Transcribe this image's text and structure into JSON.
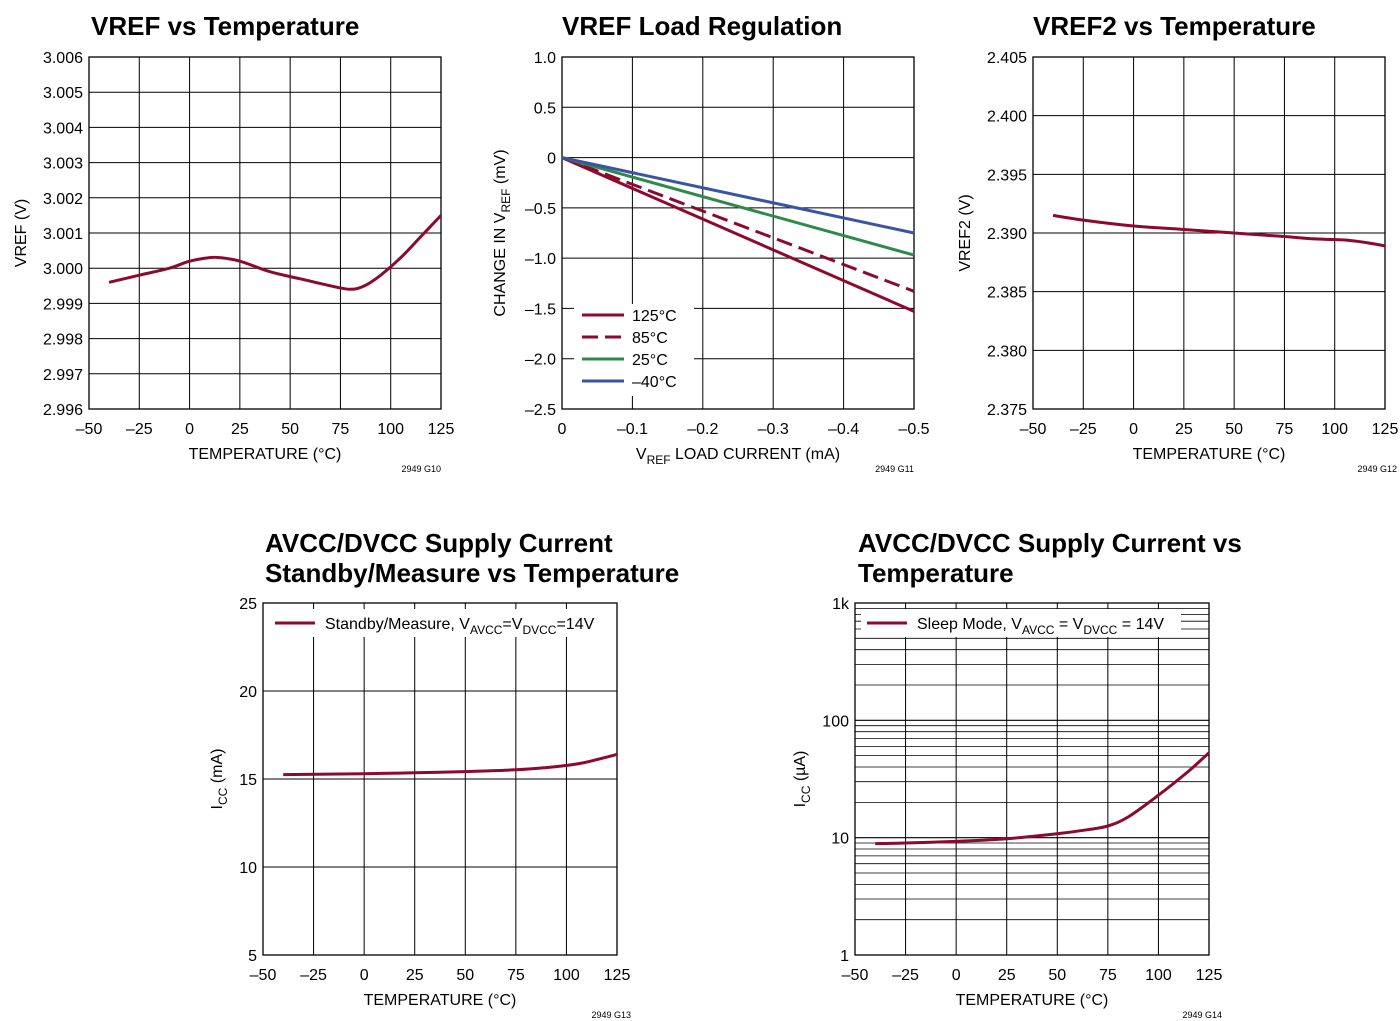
{
  "chart_data": [
    {
      "type": "line",
      "title": "VREF vs Temperature",
      "xlabel": "TEMPERATURE (°C)",
      "ylabel": "VREF (V)",
      "figure_id": "2949 G10",
      "xlim": [
        -50,
        125
      ],
      "ylim": [
        2.996,
        3.006
      ],
      "xticks": [
        "–50",
        "–25",
        "0",
        "25",
        "50",
        "75",
        "100",
        "125"
      ],
      "yticks": [
        "2.996",
        "2.997",
        "2.998",
        "2.999",
        "3.000",
        "3.001",
        "3.002",
        "3.003",
        "3.004",
        "3.005",
        "3.006"
      ],
      "grid": true,
      "series": [
        {
          "color": "#8b0a2e",
          "dash": "solid",
          "x": [
            -40,
            -25,
            -10,
            0,
            10,
            15,
            25,
            40,
            55,
            70,
            80,
            87,
            95,
            105,
            115,
            125
          ],
          "y": [
            2.9996,
            2.9998,
            3.0,
            3.0002,
            3.0003,
            3.0003,
            3.0002,
            2.9999,
            2.9997,
            2.9995,
            2.9994,
            2.9995,
            2.9998,
            3.0003,
            3.0009,
            3.0015
          ]
        }
      ]
    },
    {
      "type": "line",
      "title": "VREF Load Regulation",
      "xlabel_main": "V",
      "xlabel_sub": "REF",
      "xlabel_rest": " LOAD CURRENT (mA)",
      "ylabel_main": "CHANGE IN V",
      "ylabel_sub": "REF",
      "ylabel_rest": " (mV)",
      "figure_id": "2949 G11",
      "xlim": [
        0,
        -0.5
      ],
      "ylim": [
        -2.5,
        1.0
      ],
      "xticks": [
        "0",
        "–0.1",
        "–0.2",
        "–0.3",
        "–0.4",
        "–0.5"
      ],
      "yticks": [
        "–2.5",
        "–2.0",
        "–1.5",
        "–1.0",
        "–0.5",
        "0",
        "0.5",
        "1.0"
      ],
      "grid": true,
      "legend_position": "bottom-left",
      "series": [
        {
          "name": "125°C",
          "color": "#8b0a2e",
          "dash": "solid",
          "x": [
            0,
            -0.5
          ],
          "y": [
            0,
            -1.53
          ]
        },
        {
          "name": "85°C",
          "color": "#8b0a2e",
          "dash": "dashed",
          "x": [
            0,
            -0.5
          ],
          "y": [
            0,
            -1.33
          ]
        },
        {
          "name": "25°C",
          "color": "#2e8a4a",
          "dash": "solid",
          "x": [
            0,
            -0.5
          ],
          "y": [
            0,
            -0.97
          ]
        },
        {
          "name": "–40°C",
          "color": "#3a54a4",
          "dash": "solid",
          "x": [
            0,
            -0.5
          ],
          "y": [
            0,
            -0.75
          ]
        }
      ]
    },
    {
      "type": "line",
      "title": "VREF2 vs Temperature",
      "xlabel": "TEMPERATURE (°C)",
      "ylabel": "VREF2 (V)",
      "figure_id": "2949 G12",
      "xlim": [
        -50,
        125
      ],
      "ylim": [
        2.375,
        2.405
      ],
      "xticks": [
        "–50",
        "–25",
        "0",
        "25",
        "50",
        "75",
        "100",
        "125"
      ],
      "yticks": [
        "2.375",
        "2.380",
        "2.385",
        "2.390",
        "2.395",
        "2.400",
        "2.405"
      ],
      "grid": true,
      "series": [
        {
          "color": "#8b0a2e",
          "dash": "solid",
          "x": [
            -40,
            -25,
            0,
            25,
            50,
            75,
            90,
            105,
            115,
            125
          ],
          "y": [
            2.3915,
            2.3911,
            2.3906,
            2.3903,
            2.39,
            2.3897,
            2.3895,
            2.3894,
            2.3892,
            2.3889
          ]
        }
      ]
    },
    {
      "type": "line",
      "title": "AVCC/DVCC Supply Current",
      "title_line2": "Standby/Measure vs Temperature",
      "xlabel": "TEMPERATURE (°C)",
      "ylabel_main": "I",
      "ylabel_sub": "CC",
      "ylabel_rest": " (mA)",
      "figure_id": "2949 G13",
      "xlim": [
        -50,
        125
      ],
      "ylim": [
        5,
        25
      ],
      "xticks": [
        "–50",
        "–25",
        "0",
        "25",
        "50",
        "75",
        "100",
        "125"
      ],
      "yticks": [
        "5",
        "10",
        "15",
        "20",
        "25"
      ],
      "grid": true,
      "legend_position": "top",
      "legend_parts": [
        "Standby/Measure, V",
        "AVCC",
        "=V",
        "DVCC",
        "=14V"
      ],
      "series": [
        {
          "color": "#8b0a2e",
          "dash": "solid",
          "x": [
            -40,
            0,
            25,
            50,
            75,
            90,
            105,
            115,
            125
          ],
          "y": [
            15.25,
            15.3,
            15.35,
            15.42,
            15.52,
            15.65,
            15.85,
            16.1,
            16.4
          ]
        }
      ]
    },
    {
      "type": "line",
      "title": "AVCC/DVCC Supply Current vs",
      "title_line2": "Temperature",
      "xlabel": "TEMPERATURE (°C)",
      "ylabel_main": "I",
      "ylabel_sub": "CC",
      "ylabel_rest": " (µA)",
      "figure_id": "2949 G14",
      "xlim": [
        -50,
        125
      ],
      "ylim": [
        1,
        1000
      ],
      "yscale": "log",
      "xticks": [
        "–50",
        "–25",
        "0",
        "25",
        "50",
        "75",
        "100",
        "125"
      ],
      "yticks": [
        "1",
        "10",
        "100",
        "1k"
      ],
      "grid": true,
      "legend_position": "top",
      "legend_parts": [
        "Sleep Mode,  V",
        "AVCC",
        " = V",
        "DVCC",
        " = 14V"
      ],
      "series": [
        {
          "color": "#8b0a2e",
          "dash": "solid",
          "x": [
            -40,
            -25,
            0,
            25,
            50,
            65,
            75,
            85,
            100,
            115,
            125
          ],
          "y": [
            8.9,
            9.0,
            9.3,
            9.8,
            10.8,
            11.7,
            12.6,
            15.0,
            23.0,
            37.0,
            53.0
          ]
        }
      ]
    }
  ]
}
